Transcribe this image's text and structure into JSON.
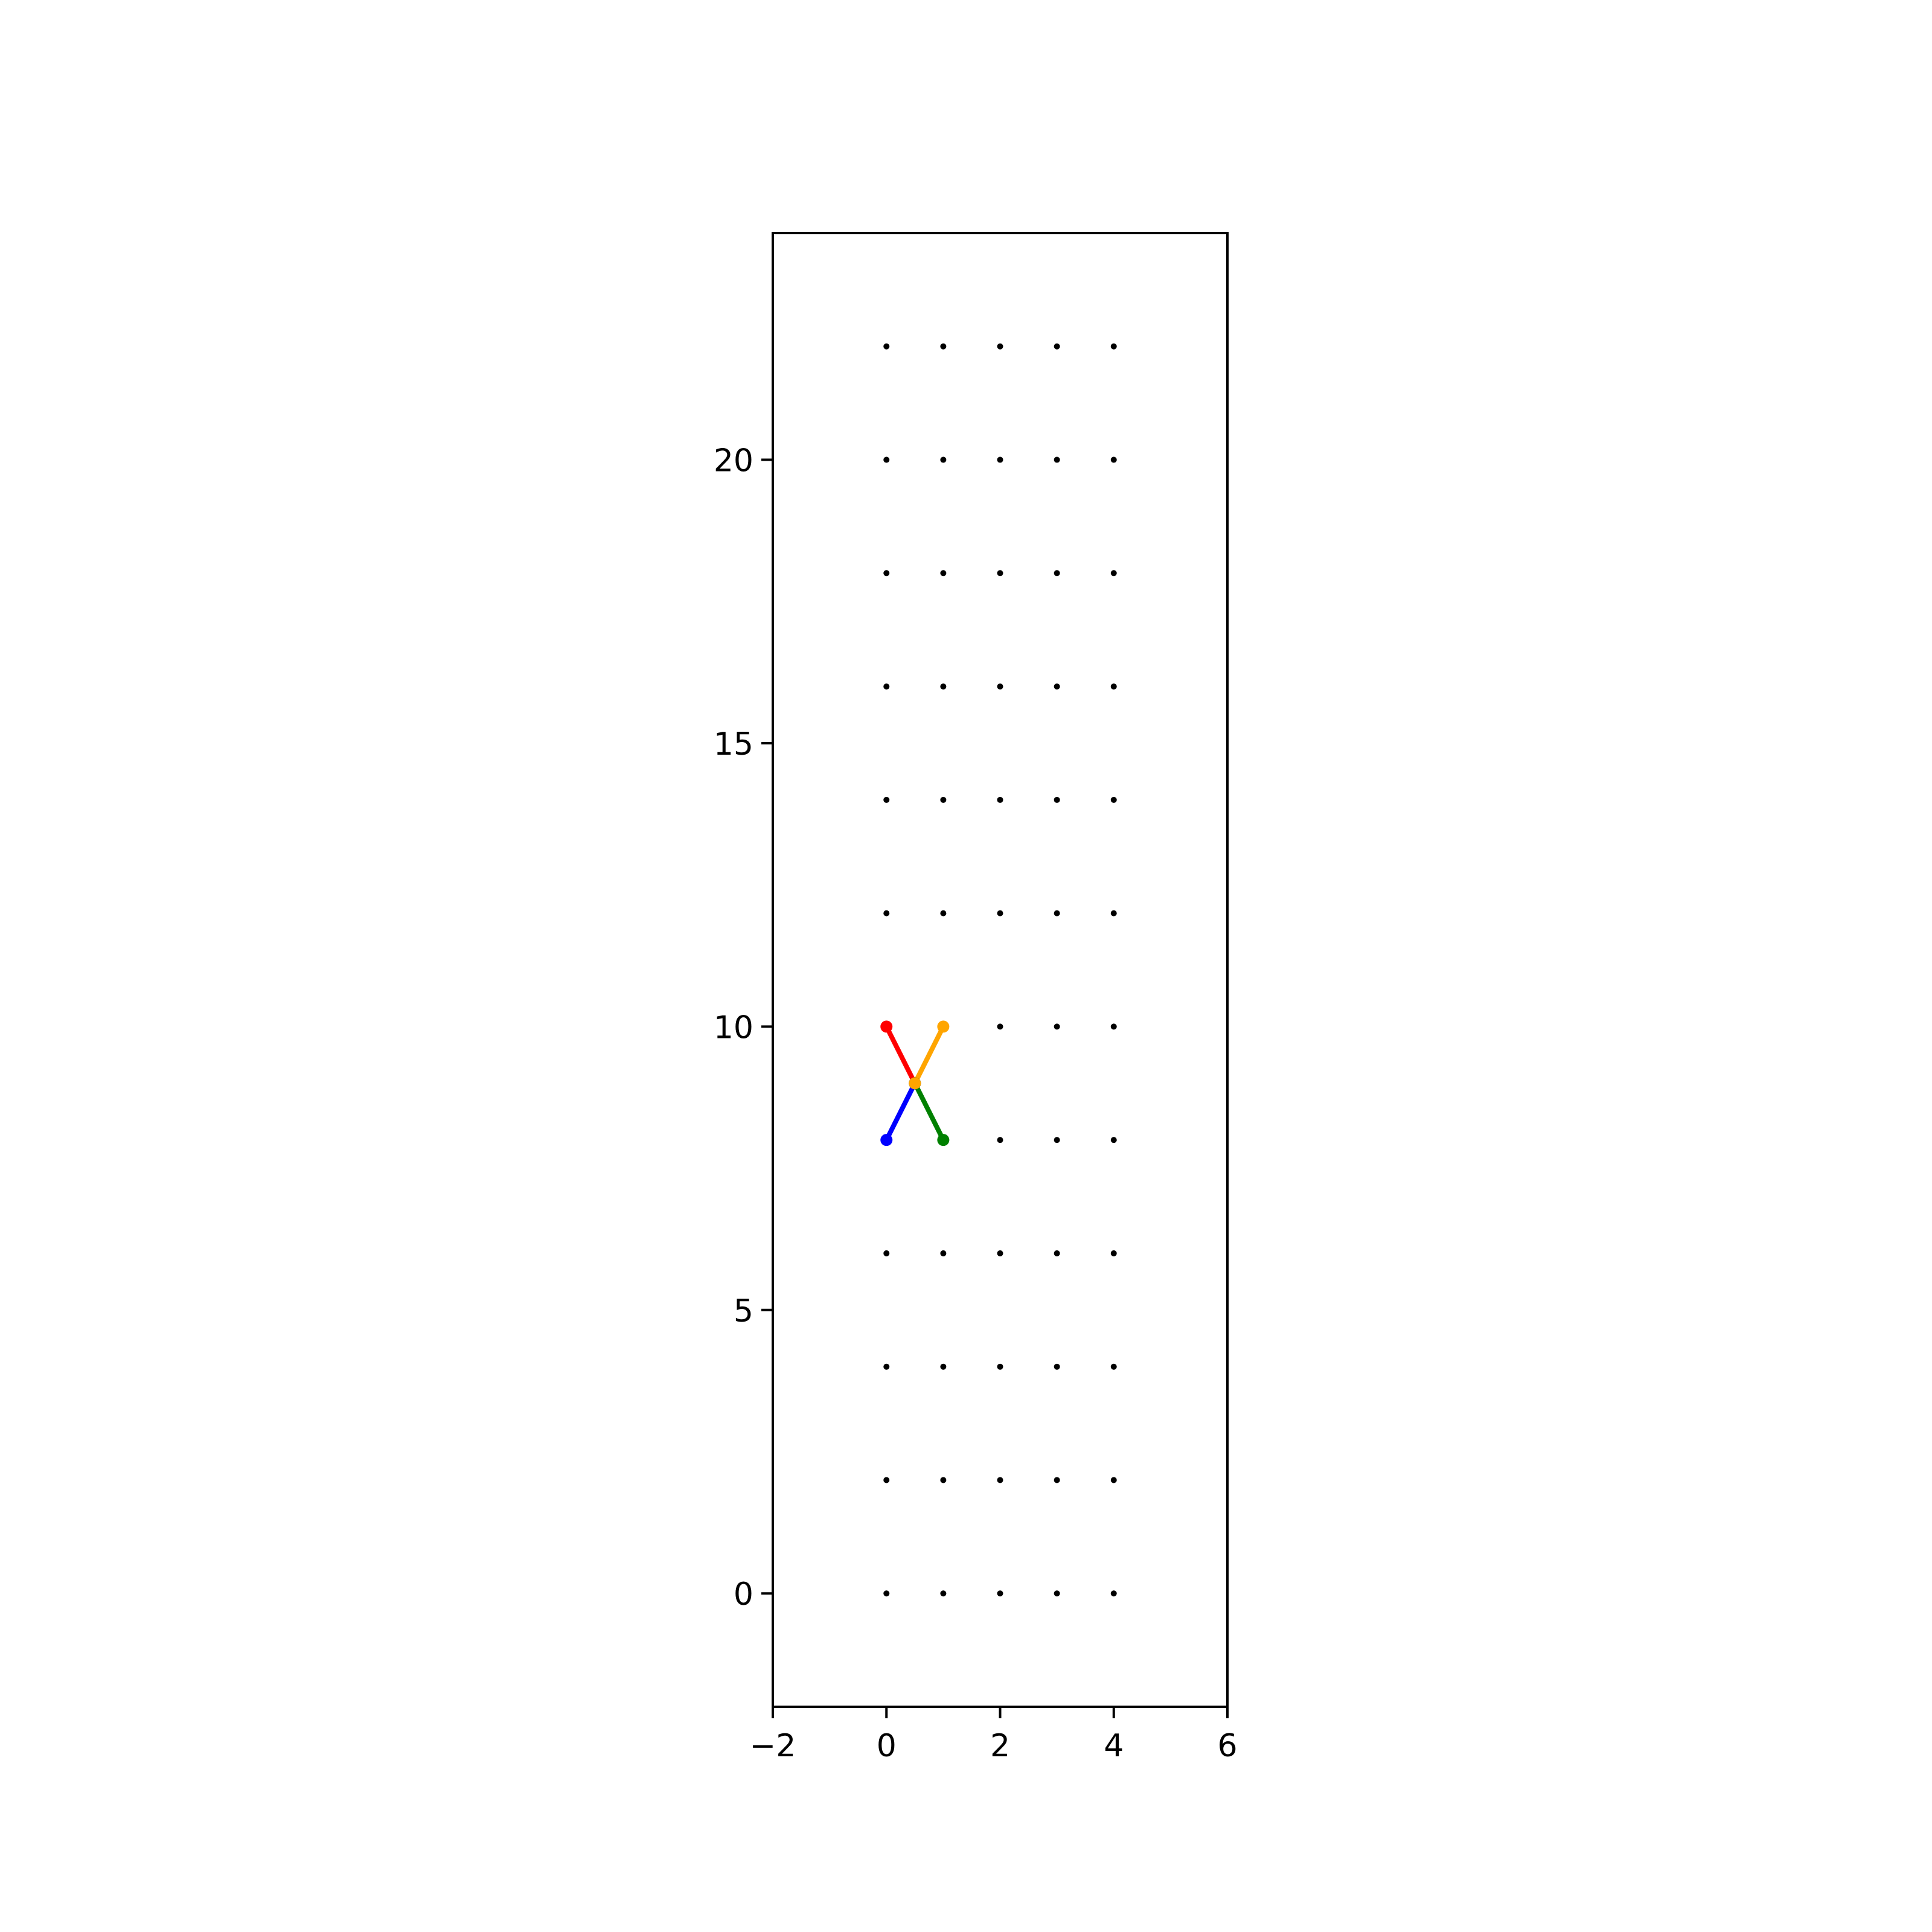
{
  "chart_data": {
    "type": "scatter",
    "xlim": [
      -2,
      6
    ],
    "ylim": [
      -2,
      24
    ],
    "xticks": [
      {
        "value": -2,
        "label": "−2"
      },
      0,
      2,
      4,
      6
    ],
    "yticks": [
      0,
      5,
      10,
      15,
      20
    ],
    "series": [
      {
        "color": "#000000",
        "x": [
          0,
          1,
          2,
          3,
          4,
          0,
          1,
          2,
          3,
          4,
          0,
          1,
          2,
          3,
          4,
          0,
          1,
          2,
          3,
          4,
          0,
          1,
          2,
          3,
          4,
          0,
          1,
          2,
          3,
          4,
          0,
          1,
          2,
          3,
          4,
          0,
          1,
          2,
          3,
          4,
          0,
          1,
          2,
          3,
          4,
          0,
          1,
          2,
          3,
          4,
          0,
          1,
          2,
          3,
          4,
          0,
          1,
          2,
          3,
          4
        ],
        "y": [
          0,
          0,
          0,
          0,
          0,
          2,
          2,
          2,
          2,
          2,
          4,
          4,
          4,
          4,
          4,
          6,
          6,
          6,
          6,
          6,
          8,
          8,
          8,
          8,
          8,
          10,
          10,
          10,
          10,
          10,
          12,
          12,
          12,
          12,
          12,
          14,
          14,
          14,
          14,
          14,
          16,
          16,
          16,
          16,
          16,
          18,
          18,
          18,
          18,
          18,
          20,
          20,
          20,
          20,
          20,
          22,
          22,
          22,
          22,
          22
        ]
      },
      {
        "color": "#ff0000",
        "lines": true,
        "x": [
          0,
          0.5
        ],
        "y": [
          10,
          9
        ]
      },
      {
        "color": "#0000ff",
        "lines": true,
        "x": [
          0,
          0.5
        ],
        "y": [
          8,
          9
        ]
      },
      {
        "color": "#008000",
        "lines": true,
        "x": [
          1,
          0.5
        ],
        "y": [
          8,
          9
        ]
      },
      {
        "color": "#ffa500",
        "lines": true,
        "x": [
          1,
          0.5
        ],
        "y": [
          10,
          9
        ]
      }
    ]
  }
}
